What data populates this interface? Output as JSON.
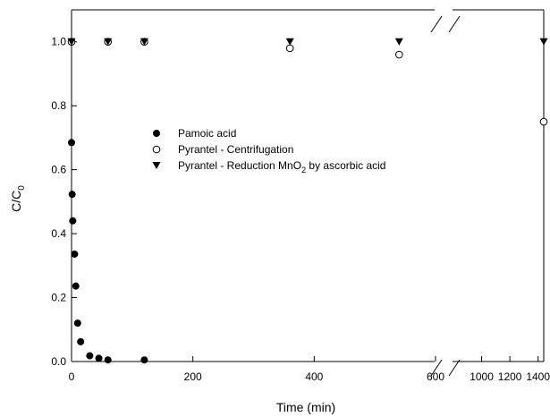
{
  "chart_data": {
    "type": "scatter",
    "xlabel": "Time (min)",
    "ylabel": {
      "main": "C/C",
      "sub": "0"
    },
    "x_axis": {
      "broken": true,
      "segments": [
        {
          "range": [
            0,
            600
          ],
          "ticks": [
            0,
            200,
            400,
            600
          ]
        },
        {
          "range": [
            800,
            1440
          ],
          "ticks": [
            1000,
            1200,
            1400
          ]
        }
      ]
    },
    "ylim": [
      0,
      1.1
    ],
    "y_ticks": [
      "0.0",
      "0.2",
      "0.4",
      "0.6",
      "0.8",
      "1.0"
    ],
    "grid": false,
    "legend_position": "center",
    "series": [
      {
        "name": "Pamoic acid",
        "marker": "filled-circle",
        "x": [
          0,
          1,
          2,
          5,
          7,
          10,
          15,
          30,
          45,
          60,
          120,
          0,
          60,
          120
        ],
        "y": [
          0.685,
          0.523,
          0.44,
          0.336,
          0.236,
          0.12,
          0.062,
          0.018,
          0.01,
          0.005,
          0.005,
          1.0,
          1.0,
          1.0
        ]
      },
      {
        "name": "Pyrantel - Centrifugation",
        "marker": "open-circle",
        "x": [
          0,
          60,
          120,
          360,
          540,
          1440
        ],
        "y": [
          1.0,
          1.0,
          1.0,
          0.98,
          0.96,
          0.75
        ]
      },
      {
        "name_parts": [
          "Pyrantel - Reduction MnO",
          "2",
          " by ascorbic acid"
        ],
        "marker": "filled-triangle-down",
        "x": [
          0,
          60,
          120,
          360,
          540,
          1440
        ],
        "y": [
          1.0,
          1.0,
          1.0,
          1.0,
          1.0,
          1.0
        ]
      }
    ]
  }
}
